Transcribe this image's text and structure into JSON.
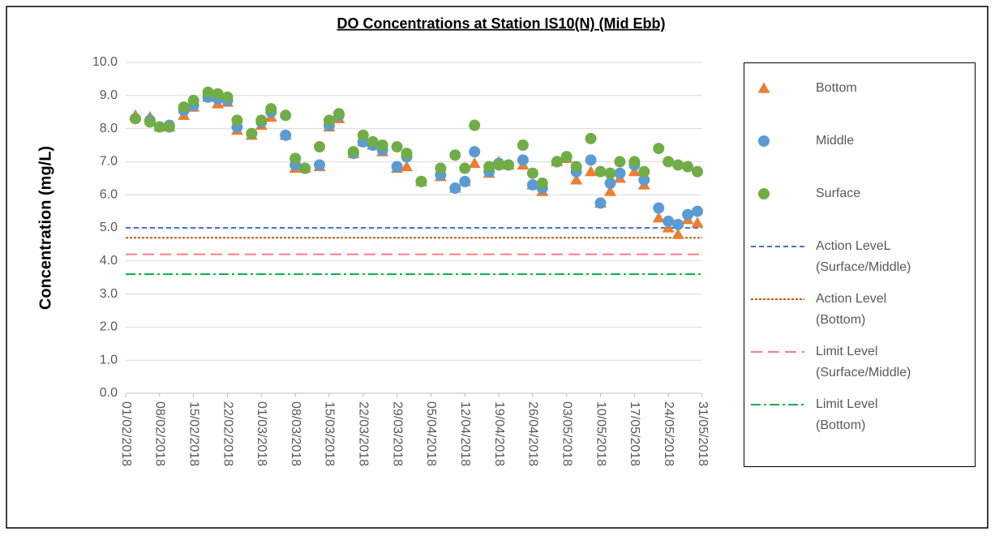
{
  "chart_data": {
    "type": "scatter",
    "title": "DO Concentrations at Station IS10(N) (Mid Ebb)",
    "ylabel": "Concentration (mg/L)",
    "x": [
      "03/02/2018",
      "06/02/2018",
      "08/02/2018",
      "10/02/2018",
      "13/02/2018",
      "15/02/2018",
      "18/02/2018",
      "20/02/2018",
      "22/02/2018",
      "24/02/2018",
      "27/02/2018",
      "01/03/2018",
      "03/03/2018",
      "06/03/2018",
      "08/03/2018",
      "10/03/2018",
      "13/03/2018",
      "15/03/2018",
      "17/03/2018",
      "20/03/2018",
      "22/03/2018",
      "24/03/2018",
      "26/03/2018",
      "29/03/2018",
      "31/03/2018",
      "03/04/2018",
      "07/04/2018",
      "10/04/2018",
      "12/04/2018",
      "14/04/2018",
      "17/04/2018",
      "19/04/2018",
      "21/04/2018",
      "24/04/2018",
      "26/04/2018",
      "28/04/2018",
      "01/05/2018",
      "03/05/2018",
      "05/05/2018",
      "08/05/2018",
      "10/05/2018",
      "12/05/2018",
      "14/05/2018",
      "17/05/2018",
      "19/05/2018",
      "22/05/2018",
      "24/05/2018",
      "26/05/2018",
      "28/05/2018",
      "30/05/2018"
    ],
    "xlim": [
      "01/02/2018",
      "31/05/2018"
    ],
    "xticks": [
      "01/02/2018",
      "08/02/2018",
      "15/02/2018",
      "22/02/2018",
      "01/03/2018",
      "08/03/2018",
      "15/03/2018",
      "22/03/2018",
      "29/03/2018",
      "05/04/2018",
      "12/04/2018",
      "19/04/2018",
      "26/04/2018",
      "03/05/2018",
      "10/05/2018",
      "17/05/2018",
      "24/05/2018",
      "31/05/2018"
    ],
    "ylim": [
      0,
      10
    ],
    "yticks": [
      {
        "value": 0,
        "label": "0.0"
      },
      {
        "value": 1,
        "label": "1.0"
      },
      {
        "value": 2,
        "label": "2.0"
      },
      {
        "value": 3,
        "label": "3.0"
      },
      {
        "value": 4,
        "label": "4.0"
      },
      {
        "value": 5,
        "label": "5.0"
      },
      {
        "value": 6,
        "label": "6.0"
      },
      {
        "value": 7,
        "label": "7.0"
      },
      {
        "value": 8,
        "label": "8.0"
      },
      {
        "value": 9,
        "label": "9.0"
      },
      {
        "value": 10,
        "label": "10.0"
      }
    ],
    "grid": true,
    "legend": "right",
    "series": [
      {
        "name": "Bottom",
        "color": "#ed7d31",
        "marker": "triangle",
        "values": [
          8.4,
          8.35,
          8.05,
          8.05,
          8.4,
          8.65,
          8.95,
          8.75,
          8.8,
          7.95,
          7.8,
          8.1,
          8.35,
          7.8,
          6.8,
          6.8,
          6.85,
          8.05,
          8.3,
          7.25,
          7.6,
          7.5,
          7.3,
          6.8,
          6.85,
          6.4,
          6.55,
          6.2,
          6.4,
          6.95,
          6.65,
          7.0,
          6.9,
          6.9,
          6.3,
          6.1,
          7.0,
          7.1,
          6.45,
          6.7,
          5.75,
          6.1,
          6.5,
          6.7,
          6.3,
          5.3,
          5.0,
          4.8,
          5.25,
          5.15
        ]
      },
      {
        "name": "Middle",
        "color": "#5b9bd5",
        "marker": "circle",
        "values": [
          8.3,
          8.25,
          8.05,
          8.1,
          8.55,
          8.7,
          8.95,
          8.9,
          8.85,
          8.05,
          7.85,
          8.2,
          8.5,
          7.8,
          6.9,
          6.8,
          6.9,
          8.1,
          8.4,
          7.25,
          7.6,
          7.5,
          7.35,
          6.85,
          7.15,
          6.4,
          6.6,
          6.2,
          6.4,
          7.3,
          6.7,
          6.95,
          6.9,
          7.05,
          6.3,
          6.2,
          7.0,
          7.15,
          6.7,
          7.05,
          5.75,
          6.35,
          6.65,
          6.9,
          6.45,
          5.6,
          5.2,
          5.1,
          5.4,
          5.5
        ]
      },
      {
        "name": "Surface",
        "color": "#70ad47",
        "marker": "circle",
        "values": [
          8.3,
          8.2,
          8.05,
          8.05,
          8.65,
          8.85,
          9.1,
          9.05,
          8.95,
          8.25,
          7.85,
          8.25,
          8.6,
          8.4,
          7.1,
          6.8,
          7.45,
          8.25,
          8.45,
          7.3,
          7.8,
          7.6,
          7.5,
          7.45,
          7.25,
          6.4,
          6.8,
          7.2,
          6.8,
          8.1,
          6.85,
          6.9,
          6.9,
          7.5,
          6.65,
          6.35,
          7.0,
          7.15,
          6.85,
          7.7,
          6.7,
          6.65,
          7.0,
          7.0,
          6.7,
          7.4,
          7.0,
          6.9,
          6.85,
          6.7
        ]
      }
    ],
    "reference_lines": [
      {
        "name": "Action LeveL (Surface/Middle)",
        "value": 5.0,
        "color": "#4472c4",
        "dash": "dashed"
      },
      {
        "name": "Action Level (Bottom)",
        "value": 4.7,
        "color": "#c55a11",
        "dash": "dotted"
      },
      {
        "name": "Limit Level (Surface/Middle)",
        "value": 4.2,
        "color": "#ff7c80",
        "dash": "long-dash"
      },
      {
        "name": "Limit Level (Bottom)",
        "value": 3.6,
        "color": "#00b050",
        "dash": "dash-dot"
      }
    ]
  }
}
